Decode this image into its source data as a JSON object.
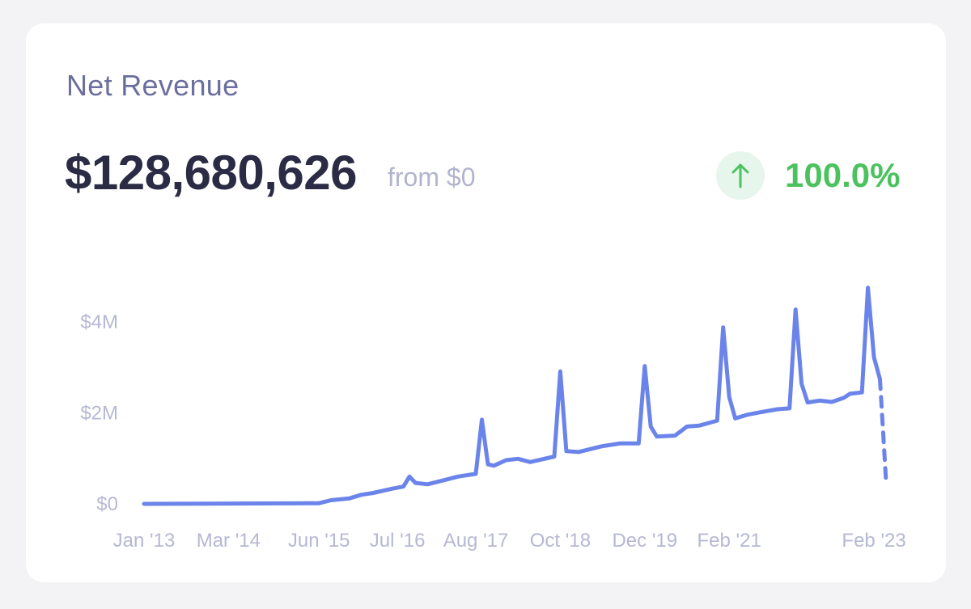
{
  "card": {
    "title": "Net Revenue",
    "amount": "$128,680,626",
    "from_text": "from $0",
    "trend_icon": "arrow-up-icon",
    "trend_value": "100.0%"
  },
  "colors": {
    "line": "#6b84ea",
    "trend_positive": "#4cc25f",
    "trend_bg": "#e7f6ec",
    "title": "#6b6f9e",
    "amount": "#2b2b45",
    "muted": "#b6b8d4"
  },
  "chart_data": {
    "type": "line",
    "title": "",
    "xlabel": "",
    "ylabel": "",
    "ylim": [
      0,
      5000000
    ],
    "grid": false,
    "y_ticks": [
      {
        "value": 0,
        "label": "$0"
      },
      {
        "value": 2000000,
        "label": "$2M"
      },
      {
        "value": 4000000,
        "label": "$4M"
      }
    ],
    "x_ticks": [
      {
        "date": "2013-01",
        "label": "Jan '13"
      },
      {
        "date": "2014-03",
        "label": "Mar '14"
      },
      {
        "date": "2015-06",
        "label": "Jun '15"
      },
      {
        "date": "2016-07",
        "label": "Jul '16"
      },
      {
        "date": "2017-08",
        "label": "Aug '17"
      },
      {
        "date": "2018-10",
        "label": "Oct '18"
      },
      {
        "date": "2019-12",
        "label": "Dec '19"
      },
      {
        "date": "2021-02",
        "label": "Feb '21"
      },
      {
        "date": "2023-02",
        "label": "Feb '23"
      }
    ],
    "series": [
      {
        "solid": [
          [
            "2013-01",
            0
          ],
          [
            "2015-06",
            15000
          ],
          [
            "2015-08",
            80000
          ],
          [
            "2015-11",
            120000
          ],
          [
            "2016-01",
            200000
          ],
          [
            "2016-03",
            240000
          ],
          [
            "2016-06",
            330000
          ],
          [
            "2016-08",
            380000
          ],
          [
            "2016-09",
            600000
          ],
          [
            "2016-10",
            460000
          ],
          [
            "2016-12",
            430000
          ],
          [
            "2017-03",
            530000
          ],
          [
            "2017-05",
            600000
          ],
          [
            "2017-08",
            660000
          ],
          [
            "2017-09",
            1850000
          ],
          [
            "2017-10",
            870000
          ],
          [
            "2017-11",
            840000
          ],
          [
            "2018-01",
            960000
          ],
          [
            "2018-03",
            990000
          ],
          [
            "2018-05",
            920000
          ],
          [
            "2018-09",
            1040000
          ],
          [
            "2018-10",
            2910000
          ],
          [
            "2018-11",
            1160000
          ],
          [
            "2019-01",
            1140000
          ],
          [
            "2019-05",
            1270000
          ],
          [
            "2019-08",
            1330000
          ],
          [
            "2019-11",
            1330000
          ],
          [
            "2019-12",
            3030000
          ],
          [
            "2020-01",
            1700000
          ],
          [
            "2020-02",
            1480000
          ],
          [
            "2020-05",
            1500000
          ],
          [
            "2020-07",
            1700000
          ],
          [
            "2020-09",
            1720000
          ],
          [
            "2020-12",
            1830000
          ],
          [
            "2021-01",
            3880000
          ],
          [
            "2021-02",
            2350000
          ],
          [
            "2021-03",
            1880000
          ],
          [
            "2021-05",
            1960000
          ],
          [
            "2021-07",
            2010000
          ],
          [
            "2021-10",
            2080000
          ],
          [
            "2021-12",
            2100000
          ],
          [
            "2022-01",
            4270000
          ],
          [
            "2022-02",
            2640000
          ],
          [
            "2022-03",
            2230000
          ],
          [
            "2022-05",
            2270000
          ],
          [
            "2022-07",
            2240000
          ],
          [
            "2022-09",
            2330000
          ],
          [
            "2022-10",
            2420000
          ],
          [
            "2022-12",
            2450000
          ],
          [
            "2023-01",
            4750000
          ],
          [
            "2023-02",
            3220000
          ],
          [
            "2023-03",
            2740000
          ]
        ],
        "projected": [
          [
            "2023-03",
            2740000
          ],
          [
            "2023-04",
            500000
          ]
        ]
      }
    ]
  }
}
